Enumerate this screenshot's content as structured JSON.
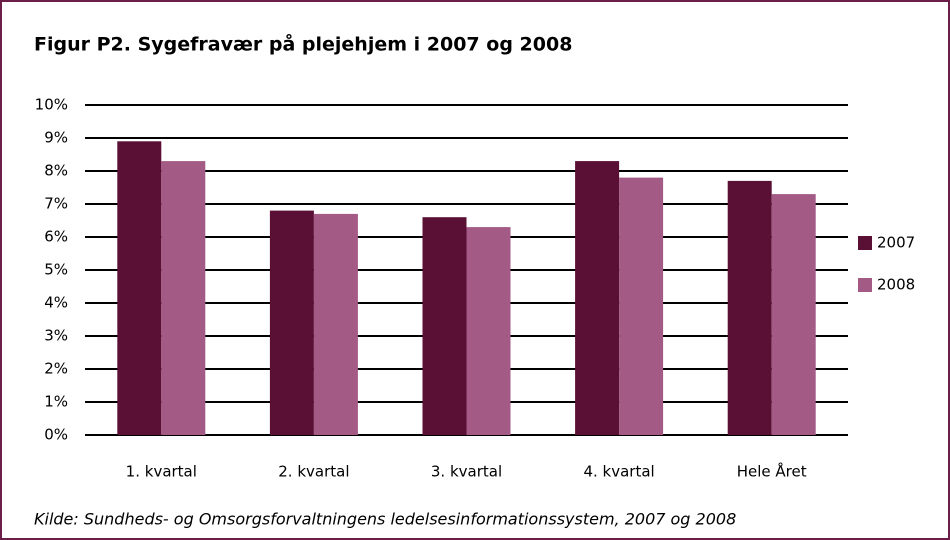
{
  "chart_data": {
    "type": "bar",
    "title": "Figur P2. Sygefravær på plejehjem i 2007 og 2008",
    "source": "Kilde: Sundheds- og Omsorgsforvaltningens ledelsesinformationssystem, 2007 og 2008",
    "categories": [
      "1. kvartal",
      "2. kvartal",
      "3. kvartal",
      "4. kvartal",
      "Hele Året"
    ],
    "series": [
      {
        "name": "2007",
        "color": "#5a0f35",
        "values": [
          8.9,
          6.8,
          6.6,
          8.3,
          7.7
        ]
      },
      {
        "name": "2008",
        "color": "#a35a85",
        "values": [
          8.3,
          6.7,
          6.3,
          7.8,
          7.3
        ]
      }
    ],
    "ylim": [
      0,
      10
    ],
    "yticks": [
      {
        "value": 0,
        "label": "0%"
      },
      {
        "value": 1,
        "label": "1%"
      },
      {
        "value": 2,
        "label": "2%"
      },
      {
        "value": 3,
        "label": "3%"
      },
      {
        "value": 4,
        "label": "4%"
      },
      {
        "value": 5,
        "label": "5%"
      },
      {
        "value": 6,
        "label": "6%"
      },
      {
        "value": 7,
        "label": "7%"
      },
      {
        "value": 8,
        "label": "8%"
      },
      {
        "value": 9,
        "label": "9%"
      },
      {
        "value": 10,
        "label": "10%"
      }
    ],
    "grid": true,
    "legend": "right"
  }
}
